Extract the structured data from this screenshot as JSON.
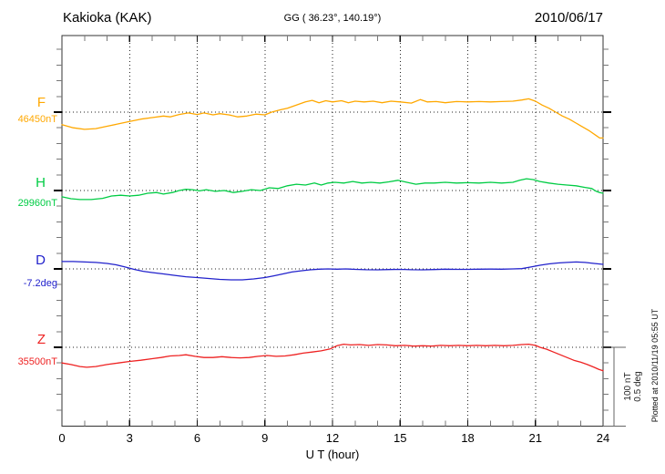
{
  "header": {
    "title": "Kakioka (KAK)",
    "coordinates": "GG ( 36.23°, 140.19°)",
    "date": "2010/06/17"
  },
  "xaxis": {
    "label": "U T (hour)",
    "tick_labels": [
      "0",
      "3",
      "6",
      "9",
      "12",
      "15",
      "18",
      "21",
      "24"
    ]
  },
  "scale_bar": {
    "nt_label": "100 nT",
    "deg_label": "0.5 deg"
  },
  "footer_note": "Plotted at 2010/11/19 05:55 UT",
  "chart_data": {
    "type": "line",
    "title": "Kakioka (KAK) magnetogram 2010/06/17",
    "xlabel": "U T (hour)",
    "x_range_hours": [
      0,
      24
    ],
    "x_tick_step_hours": 3,
    "grid": "dotted vertical gridlines every 3 h; dotted horizontal baseline for each trace",
    "scale": {
      "nT_per_division": 20,
      "bar_nT": 100,
      "bar_deg": 0.5
    },
    "series": [
      {
        "name": "F",
        "baseline_label": "46450nT",
        "unit": "nT",
        "color": "#FFA800",
        "points": [
          [
            0,
            -16
          ],
          [
            0.5,
            -20
          ],
          [
            1,
            -22
          ],
          [
            1.5,
            -21
          ],
          [
            2,
            -18
          ],
          [
            2.5,
            -15
          ],
          [
            3,
            -12
          ],
          [
            3.5,
            -9
          ],
          [
            4,
            -7
          ],
          [
            4.5,
            -5
          ],
          [
            4.8,
            -6
          ],
          [
            5.2,
            -3
          ],
          [
            5.6,
            -1
          ],
          [
            6,
            -3
          ],
          [
            6.3,
            -1
          ],
          [
            6.7,
            -3.5
          ],
          [
            7,
            -2
          ],
          [
            7.4,
            -3.5
          ],
          [
            7.8,
            -6
          ],
          [
            8.2,
            -5
          ],
          [
            8.6,
            -2.5
          ],
          [
            9,
            -3.5
          ],
          [
            9.3,
            0
          ],
          [
            9.7,
            3
          ],
          [
            10,
            5
          ],
          [
            10.4,
            9
          ],
          [
            10.8,
            13
          ],
          [
            11.1,
            15
          ],
          [
            11.4,
            12
          ],
          [
            11.7,
            14.5
          ],
          [
            12,
            13
          ],
          [
            12.4,
            14.5
          ],
          [
            12.7,
            12
          ],
          [
            13,
            14
          ],
          [
            13.4,
            13
          ],
          [
            13.8,
            14
          ],
          [
            14.2,
            12
          ],
          [
            14.6,
            14
          ],
          [
            15,
            13
          ],
          [
            15.5,
            11.5
          ],
          [
            15.9,
            16
          ],
          [
            16.2,
            13
          ],
          [
            16.6,
            13.5
          ],
          [
            17,
            12
          ],
          [
            17.5,
            13.5
          ],
          [
            18,
            13
          ],
          [
            18.5,
            13.5
          ],
          [
            19,
            13
          ],
          [
            19.5,
            13.5
          ],
          [
            20,
            14
          ],
          [
            20.4,
            15.5
          ],
          [
            20.7,
            17
          ],
          [
            21,
            14
          ],
          [
            21.3,
            9
          ],
          [
            21.6,
            5
          ],
          [
            21.9,
            0
          ],
          [
            22.2,
            -5
          ],
          [
            22.5,
            -9
          ],
          [
            22.8,
            -14
          ],
          [
            23.1,
            -19
          ],
          [
            23.4,
            -24
          ],
          [
            23.7,
            -30
          ],
          [
            23.85,
            -33
          ],
          [
            24,
            -33
          ]
        ]
      },
      {
        "name": "H",
        "baseline_label": "29960nT",
        "unit": "nT",
        "color": "#00CC44",
        "points": [
          [
            0,
            -8
          ],
          [
            0.4,
            -10.5
          ],
          [
            0.8,
            -11.5
          ],
          [
            1.3,
            -11.5
          ],
          [
            1.8,
            -10
          ],
          [
            2.2,
            -7
          ],
          [
            2.6,
            -6
          ],
          [
            3,
            -7
          ],
          [
            3.4,
            -6
          ],
          [
            3.8,
            -3.5
          ],
          [
            4.2,
            -2.5
          ],
          [
            4.5,
            -4.5
          ],
          [
            4.9,
            -2.5
          ],
          [
            5.2,
            0
          ],
          [
            5.5,
            1.5
          ],
          [
            5.8,
            1
          ],
          [
            6.1,
            -0.5
          ],
          [
            6.4,
            1
          ],
          [
            6.8,
            -1
          ],
          [
            7.2,
            0
          ],
          [
            7.6,
            -2.5
          ],
          [
            8,
            -1
          ],
          [
            8.4,
            1
          ],
          [
            8.8,
            0
          ],
          [
            9.2,
            3.5
          ],
          [
            9.6,
            2.5
          ],
          [
            10,
            6
          ],
          [
            10.4,
            8
          ],
          [
            10.8,
            7
          ],
          [
            11.2,
            9.5
          ],
          [
            11.5,
            7
          ],
          [
            11.8,
            9.5
          ],
          [
            12.1,
            10.5
          ],
          [
            12.5,
            9.5
          ],
          [
            12.9,
            11.5
          ],
          [
            13.3,
            9.5
          ],
          [
            13.7,
            10.5
          ],
          [
            14.1,
            9.5
          ],
          [
            14.5,
            11
          ],
          [
            14.9,
            13
          ],
          [
            15.3,
            10.5
          ],
          [
            15.7,
            8
          ],
          [
            16.1,
            9.5
          ],
          [
            16.5,
            9.5
          ],
          [
            17,
            10.5
          ],
          [
            17.5,
            9.5
          ],
          [
            18,
            10
          ],
          [
            18.5,
            9.5
          ],
          [
            19,
            10.5
          ],
          [
            19.5,
            9.5
          ],
          [
            20,
            10.5
          ],
          [
            20.3,
            13
          ],
          [
            20.6,
            15
          ],
          [
            20.9,
            14
          ],
          [
            21.2,
            11.5
          ],
          [
            21.6,
            9.5
          ],
          [
            22,
            8
          ],
          [
            22.4,
            7
          ],
          [
            22.8,
            6
          ],
          [
            23.2,
            4
          ],
          [
            23.5,
            2.5
          ],
          [
            23.7,
            -1
          ],
          [
            23.85,
            -2.5
          ],
          [
            24,
            -3.5
          ]
        ]
      },
      {
        "name": "D",
        "baseline_label": "-7.2deg",
        "unit": "deg",
        "color": "#2222CC",
        "points": [
          [
            0,
            0.047
          ],
          [
            0.5,
            0.047
          ],
          [
            1,
            0.044
          ],
          [
            1.5,
            0.041
          ],
          [
            2,
            0.035
          ],
          [
            2.4,
            0.026
          ],
          [
            2.8,
            0.012
          ],
          [
            3.2,
            -0.003
          ],
          [
            3.6,
            -0.015
          ],
          [
            4,
            -0.023
          ],
          [
            4.5,
            -0.032
          ],
          [
            5,
            -0.041
          ],
          [
            5.5,
            -0.05
          ],
          [
            6,
            -0.055
          ],
          [
            6.5,
            -0.061
          ],
          [
            7,
            -0.067
          ],
          [
            7.5,
            -0.07
          ],
          [
            8,
            -0.07
          ],
          [
            8.5,
            -0.064
          ],
          [
            9,
            -0.055
          ],
          [
            9.4,
            -0.044
          ],
          [
            9.8,
            -0.032
          ],
          [
            10.2,
            -0.02
          ],
          [
            10.6,
            -0.012
          ],
          [
            11,
            -0.006
          ],
          [
            11.4,
            -0.002
          ],
          [
            11.8,
            0
          ],
          [
            12.2,
            -0.002
          ],
          [
            12.6,
            0
          ],
          [
            13,
            -0.003
          ],
          [
            13.5,
            -0.005
          ],
          [
            14,
            -0.006
          ],
          [
            14.5,
            -0.004
          ],
          [
            15,
            -0.003
          ],
          [
            15.5,
            -0.005
          ],
          [
            16,
            -0.006
          ],
          [
            16.5,
            -0.004
          ],
          [
            17,
            -0.002
          ],
          [
            17.5,
            -0.003
          ],
          [
            18,
            -0.003
          ],
          [
            18.5,
            -0.002
          ],
          [
            19,
            -0.001
          ],
          [
            19.5,
            -0.002
          ],
          [
            20,
            0
          ],
          [
            20.4,
            0.002
          ],
          [
            20.8,
            0.012
          ],
          [
            21.2,
            0.023
          ],
          [
            21.6,
            0.032
          ],
          [
            22,
            0.038
          ],
          [
            22.4,
            0.041
          ],
          [
            22.8,
            0.044
          ],
          [
            23.2,
            0.041
          ],
          [
            23.6,
            0.035
          ],
          [
            24,
            0.029
          ]
        ]
      },
      {
        "name": "Z",
        "baseline_label": "35500nT",
        "unit": "nT",
        "color": "#EE2222",
        "points": [
          [
            0,
            -20
          ],
          [
            0.4,
            -22
          ],
          [
            0.8,
            -24.5
          ],
          [
            1.1,
            -25.5
          ],
          [
            1.5,
            -24.5
          ],
          [
            2,
            -22
          ],
          [
            2.5,
            -20
          ],
          [
            3,
            -18
          ],
          [
            3.5,
            -16.5
          ],
          [
            4,
            -14.5
          ],
          [
            4.4,
            -13
          ],
          [
            4.8,
            -11
          ],
          [
            5.2,
            -10.5
          ],
          [
            5.5,
            -9.5
          ],
          [
            5.9,
            -11.5
          ],
          [
            6.3,
            -13
          ],
          [
            6.7,
            -13
          ],
          [
            7.1,
            -12
          ],
          [
            7.5,
            -13
          ],
          [
            7.9,
            -13.5
          ],
          [
            8.3,
            -13
          ],
          [
            8.7,
            -11.5
          ],
          [
            9.1,
            -10.5
          ],
          [
            9.5,
            -11.5
          ],
          [
            9.9,
            -11
          ],
          [
            10.3,
            -9.5
          ],
          [
            10.7,
            -7.5
          ],
          [
            11.1,
            -6
          ],
          [
            11.5,
            -4.5
          ],
          [
            11.9,
            -2
          ],
          [
            12.2,
            2
          ],
          [
            12.5,
            4
          ],
          [
            12.8,
            3
          ],
          [
            13.2,
            3.5
          ],
          [
            13.6,
            2.5
          ],
          [
            14,
            3.5
          ],
          [
            14.4,
            3
          ],
          [
            14.8,
            2
          ],
          [
            15.2,
            2.5
          ],
          [
            15.6,
            1.5
          ],
          [
            16,
            2
          ],
          [
            16.4,
            1.5
          ],
          [
            16.8,
            2.5
          ],
          [
            17.2,
            2
          ],
          [
            17.6,
            2.5
          ],
          [
            18,
            2
          ],
          [
            18.4,
            2.5
          ],
          [
            18.8,
            2
          ],
          [
            19.2,
            2.5
          ],
          [
            19.6,
            2
          ],
          [
            20,
            2.5
          ],
          [
            20.4,
            3.5
          ],
          [
            20.7,
            4
          ],
          [
            21,
            2.5
          ],
          [
            21.2,
            0
          ],
          [
            21.5,
            -2.5
          ],
          [
            21.8,
            -6
          ],
          [
            22.1,
            -9.5
          ],
          [
            22.4,
            -13
          ],
          [
            22.7,
            -16.5
          ],
          [
            23,
            -19
          ],
          [
            23.3,
            -22
          ],
          [
            23.6,
            -25.5
          ],
          [
            23.8,
            -28
          ],
          [
            24,
            -30
          ]
        ]
      }
    ]
  }
}
